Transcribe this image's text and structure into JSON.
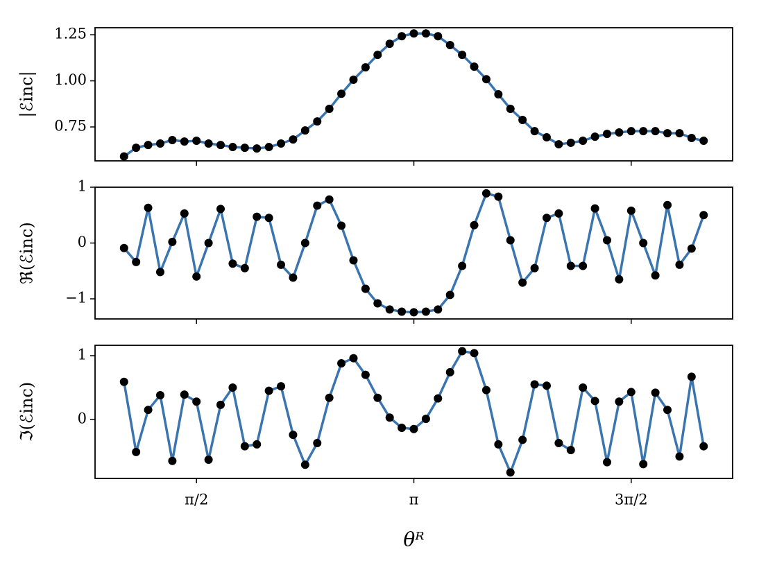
{
  "chart_data": [
    {
      "type": "line",
      "ylabel": "|ℰinc|",
      "color": "#3a75b0",
      "marker_color": "#000000",
      "x": [
        1.0472,
        1.1345,
        1.2217,
        1.309,
        1.3963,
        1.4835,
        1.5708,
        1.6581,
        1.7453,
        1.8326,
        1.9199,
        2.0071,
        2.0944,
        2.1817,
        2.2689,
        2.3562,
        2.4435,
        2.5307,
        2.618,
        2.7053,
        2.7925,
        2.8798,
        2.9671,
        3.0543,
        3.1416,
        3.2289,
        3.3161,
        3.4034,
        3.4907,
        3.5779,
        3.6652,
        3.7525,
        3.8397,
        3.927,
        4.0143,
        4.1015,
        4.1888,
        4.2761,
        4.3633,
        4.4506,
        4.5379,
        4.6251,
        4.7124,
        4.7997,
        4.8869,
        4.9742,
        5.0615,
        5.1487,
        5.236
      ],
      "values": [
        0.59,
        0.637,
        0.652,
        0.66,
        0.679,
        0.671,
        0.675,
        0.66,
        0.652,
        0.641,
        0.637,
        0.633,
        0.641,
        0.66,
        0.682,
        0.731,
        0.78,
        0.848,
        0.93,
        1.006,
        1.073,
        1.141,
        1.201,
        1.242,
        1.257,
        1.257,
        1.242,
        1.194,
        1.141,
        1.077,
        1.009,
        0.927,
        0.848,
        0.788,
        0.727,
        0.694,
        0.656,
        0.664,
        0.675,
        0.697,
        0.712,
        0.72,
        0.727,
        0.727,
        0.727,
        0.716,
        0.716,
        0.69,
        0.675
      ],
      "xlim": [
        0.8378,
        5.4454
      ],
      "ylim": [
        0.566,
        1.288
      ],
      "yticks": [
        0.75,
        {
          "value": 1,
          "label": "1.00"
        },
        1.25
      ]
    },
    {
      "type": "line",
      "ylabel": "ℜ(ℰinc)",
      "color": "#3a75b0",
      "marker_color": "#000000",
      "x": [
        1.0472,
        1.1345,
        1.2217,
        1.309,
        1.3963,
        1.4835,
        1.5708,
        1.6581,
        1.7453,
        1.8326,
        1.9199,
        2.0071,
        2.0944,
        2.1817,
        2.2689,
        2.3562,
        2.4435,
        2.5307,
        2.618,
        2.7053,
        2.7925,
        2.8798,
        2.9671,
        3.0543,
        3.1416,
        3.2289,
        3.3161,
        3.4034,
        3.4907,
        3.5779,
        3.6652,
        3.7525,
        3.8397,
        3.927,
        4.0143,
        4.1015,
        4.1888,
        4.2761,
        4.3633,
        4.4506,
        4.5379,
        4.6251,
        4.7124,
        4.7997,
        4.8869,
        4.9742,
        5.0615,
        5.1487,
        5.236
      ],
      "values": [
        -0.09,
        -0.34,
        0.63,
        -0.52,
        0.02,
        0.53,
        -0.6,
        0.0,
        0.61,
        -0.37,
        -0.45,
        0.47,
        0.45,
        -0.39,
        -0.62,
        0.0,
        0.67,
        0.78,
        0.31,
        -0.31,
        -0.82,
        -1.08,
        -1.19,
        -1.23,
        -1.24,
        -1.23,
        -1.19,
        -0.93,
        -0.41,
        0.32,
        0.89,
        0.83,
        0.05,
        -0.71,
        -0.45,
        0.45,
        0.53,
        -0.41,
        -0.41,
        0.62,
        0.05,
        -0.65,
        0.58,
        0.0,
        -0.58,
        0.68,
        -0.39,
        -0.1,
        0.5
      ],
      "xlim": [
        0.8378,
        5.4454
      ],
      "ylim": [
        -1.36,
        1.0
      ],
      "yticks": [
        {
          "value": -1,
          "label": "−1"
        },
        0,
        1
      ]
    },
    {
      "type": "line",
      "ylabel": "ℑ(ℰinc)",
      "xlabel": "θᴿ",
      "color": "#3a75b0",
      "marker_color": "#000000",
      "x": [
        1.0472,
        1.1345,
        1.2217,
        1.309,
        1.3963,
        1.4835,
        1.5708,
        1.6581,
        1.7453,
        1.8326,
        1.9199,
        2.0071,
        2.0944,
        2.1817,
        2.2689,
        2.3562,
        2.4435,
        2.5307,
        2.618,
        2.7053,
        2.7925,
        2.8798,
        2.9671,
        3.0543,
        3.1416,
        3.2289,
        3.3161,
        3.4034,
        3.4907,
        3.5779,
        3.6652,
        3.7525,
        3.8397,
        3.927,
        4.0143,
        4.1015,
        4.1888,
        4.2761,
        4.3633,
        4.4506,
        4.5379,
        4.6251,
        4.7124,
        4.7997,
        4.8869,
        4.9742,
        5.0615,
        5.1487,
        5.236
      ],
      "values": [
        0.59,
        -0.51,
        0.15,
        0.38,
        -0.65,
        0.39,
        0.28,
        -0.63,
        0.23,
        0.5,
        -0.42,
        -0.39,
        0.45,
        0.52,
        -0.24,
        -0.71,
        -0.37,
        0.34,
        0.88,
        0.96,
        0.7,
        0.34,
        0.03,
        -0.13,
        -0.15,
        0.01,
        0.33,
        0.74,
        1.07,
        1.04,
        0.46,
        -0.39,
        -0.83,
        -0.32,
        0.55,
        0.53,
        -0.37,
        -0.48,
        0.5,
        0.29,
        -0.67,
        0.28,
        0.43,
        -0.7,
        0.42,
        0.15,
        -0.58,
        0.67,
        -0.42
      ],
      "xlim": [
        0.8378,
        5.4454
      ],
      "ylim": [
        -0.924,
        1.163
      ],
      "yticks": [
        0,
        1
      ],
      "xticks": [
        {
          "value": 1.5708,
          "label": "π/2"
        },
        {
          "value": 3.1416,
          "label": "π"
        },
        {
          "value": 4.7124,
          "label": "3π/2"
        }
      ]
    }
  ]
}
